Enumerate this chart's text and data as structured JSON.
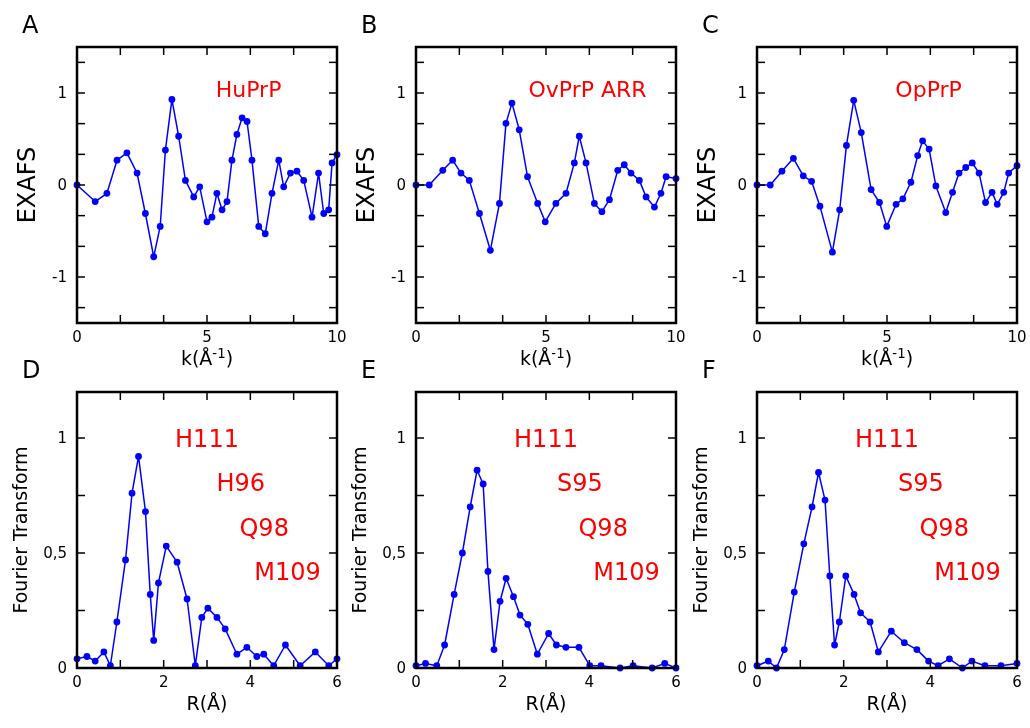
{
  "chart_data": [
    {
      "type": "line",
      "title": "A",
      "xlabel": "k(Å$^{-1}$)",
      "ylabel": "EXAFS",
      "annotations": [
        "HuPrP"
      ],
      "marker": "circle",
      "line_style": "solid",
      "xlim": [
        0,
        10
      ],
      "ylim": [
        -1.5,
        1.5
      ],
      "xticks": [
        0,
        {
          "value": 1.667,
          "label": null
        },
        {
          "value": 3.333,
          "label": null
        },
        5,
        {
          "value": 6.667,
          "label": null
        },
        {
          "value": 8.333,
          "label": null
        },
        10
      ],
      "yticks": [
        {
          "value": -1.333,
          "label": null
        },
        -1,
        {
          "value": -0.667,
          "label": null
        },
        {
          "value": -0.333,
          "label": null
        },
        0,
        {
          "value": 0.333,
          "label": null
        },
        {
          "value": 0.667,
          "label": null
        },
        1,
        {
          "value": 1.333,
          "label": null
        }
      ],
      "series": [
        {
          "color": "#0000ff",
          "x": [
            0,
            0.7,
            1.15,
            1.54,
            1.92,
            2.31,
            2.63,
            2.95,
            3.2,
            3.4,
            3.65,
            3.91,
            4.17,
            4.49,
            4.72,
            5.0,
            5.19,
            5.38,
            5.58,
            5.77,
            5.96,
            6.15,
            6.35,
            6.54,
            6.73,
            6.99,
            7.24,
            7.5,
            7.76,
            7.95,
            8.21,
            8.46,
            8.72,
            9.04,
            9.29,
            9.49,
            9.68,
            9.81,
            10
          ],
          "values": [
            0,
            -0.18,
            -0.09,
            0.27,
            0.35,
            0.13,
            -0.31,
            -0.78,
            -0.45,
            0.38,
            0.93,
            0.53,
            0.05,
            -0.13,
            -0.02,
            -0.4,
            -0.35,
            -0.09,
            -0.27,
            -0.18,
            0.27,
            0.55,
            0.73,
            0.69,
            0.27,
            -0.45,
            -0.53,
            -0.09,
            0.27,
            -0.02,
            0.13,
            0.15,
            0.05,
            -0.35,
            0.13,
            -0.31,
            -0.27,
            0.24,
            0.33
          ]
        }
      ]
    },
    {
      "type": "line",
      "title": "B",
      "xlabel": "k(Å$^{-1}$)",
      "ylabel": "EXAFS",
      "annotations": [
        "OvPrP ARR"
      ],
      "marker": "circle",
      "line_style": "solid",
      "xlim": [
        0,
        10
      ],
      "ylim": [
        -1.5,
        1.5
      ],
      "xticks": [
        0,
        {
          "value": 1.667,
          "label": null
        },
        {
          "value": 3.333,
          "label": null
        },
        5,
        {
          "value": 6.667,
          "label": null
        },
        {
          "value": 8.333,
          "label": null
        },
        10
      ],
      "yticks": [
        {
          "value": -1.333,
          "label": null
        },
        -1,
        {
          "value": -0.667,
          "label": null
        },
        {
          "value": -0.333,
          "label": null
        },
        0,
        {
          "value": 0.333,
          "label": null
        },
        {
          "value": 0.667,
          "label": null
        },
        1,
        {
          "value": 1.333,
          "label": null
        }
      ],
      "series": [
        {
          "color": "#0000ff",
          "x": [
            0,
            0.51,
            1.03,
            1.41,
            1.73,
            2.05,
            2.44,
            2.86,
            3.21,
            3.46,
            3.69,
            3.97,
            4.29,
            4.68,
            4.97,
            5.38,
            5.77,
            6.09,
            6.28,
            6.54,
            6.86,
            7.15,
            7.44,
            7.76,
            8.01,
            8.27,
            8.59,
            8.85,
            9.17,
            9.42,
            9.62,
            10
          ],
          "values": [
            0,
            0,
            0.16,
            0.27,
            0.13,
            0.05,
            -0.31,
            -0.71,
            -0.2,
            0.67,
            0.89,
            0.6,
            0.09,
            -0.2,
            -0.4,
            -0.2,
            -0.09,
            0.24,
            0.53,
            0.24,
            -0.2,
            -0.29,
            -0.16,
            0.16,
            0.22,
            0.13,
            0.05,
            -0.13,
            -0.24,
            -0.09,
            0.09,
            0.07
          ]
        }
      ]
    },
    {
      "type": "line",
      "title": "C",
      "xlabel": "k(Å$^{-1}$)",
      "ylabel": "EXAFS",
      "annotations": [
        "OpPrP"
      ],
      "marker": "circle",
      "line_style": "solid",
      "xlim": [
        0,
        10
      ],
      "ylim": [
        -1.5,
        1.5
      ],
      "xticks": [
        0,
        {
          "value": 1.667,
          "label": null
        },
        {
          "value": 3.333,
          "label": null
        },
        5,
        {
          "value": 6.667,
          "label": null
        },
        {
          "value": 8.333,
          "label": null
        },
        10
      ],
      "yticks": [
        {
          "value": -1.333,
          "label": null
        },
        -1,
        {
          "value": -0.667,
          "label": null
        },
        {
          "value": -0.333,
          "label": null
        },
        0,
        {
          "value": 0.333,
          "label": null
        },
        {
          "value": 0.667,
          "label": null
        },
        1,
        {
          "value": 1.333,
          "label": null
        }
      ],
      "series": [
        {
          "color": "#0000ff",
          "x": [
            0,
            0.51,
            0.96,
            1.4,
            1.78,
            2.1,
            2.42,
            2.9,
            3.18,
            3.44,
            3.72,
            4.01,
            4.39,
            4.71,
            4.99,
            5.35,
            5.61,
            5.92,
            6.18,
            6.37,
            6.62,
            6.88,
            7.26,
            7.52,
            7.77,
            8.03,
            8.28,
            8.54,
            8.79,
            9.04,
            9.24,
            9.49,
            9.68,
            10
          ],
          "values": [
            0,
            0,
            0.15,
            0.29,
            0.1,
            0.04,
            -0.23,
            -0.73,
            -0.27,
            0.43,
            0.92,
            0.57,
            -0.05,
            -0.19,
            -0.45,
            -0.21,
            -0.15,
            0.03,
            0.32,
            0.48,
            0.39,
            -0.01,
            -0.3,
            -0.08,
            0.13,
            0.19,
            0.24,
            0.13,
            -0.19,
            -0.08,
            -0.21,
            -0.08,
            0.13,
            0.21
          ]
        }
      ]
    },
    {
      "type": "line",
      "title": "D",
      "xlabel": "R(Å)",
      "ylabel": "Fourier Transform",
      "annotations": [
        "H111",
        "H96",
        "Q98",
        "M109"
      ],
      "marker": "circle",
      "line_style": "solid",
      "xlim": [
        0,
        6
      ],
      "ylim": [
        0,
        1.2
      ],
      "xticks": [
        0,
        {
          "value": 1,
          "label": null
        },
        2,
        {
          "value": 3,
          "label": null
        },
        4,
        {
          "value": 5,
          "label": null
        },
        6
      ],
      "yticks": [
        0,
        {
          "value": 0.25,
          "label": null
        },
        {
          "value": 0.5,
          "label": "0,5"
        },
        {
          "value": 0.75,
          "label": null
        },
        1
      ],
      "series": [
        {
          "color": "#0000ff",
          "x": [
            0,
            0.23,
            0.42,
            0.62,
            0.77,
            0.92,
            1.12,
            1.27,
            1.42,
            1.58,
            1.69,
            1.77,
            1.88,
            2.06,
            2.31,
            2.54,
            2.73,
            2.88,
            3.02,
            3.23,
            3.42,
            3.69,
            3.92,
            4.15,
            4.31,
            4.54,
            4.81,
            5.15,
            5.5,
            5.81,
            6
          ],
          "values": [
            0.04,
            0.05,
            0.03,
            0.07,
            0.01,
            0.2,
            0.47,
            0.76,
            0.92,
            0.68,
            0.32,
            0.12,
            0.37,
            0.53,
            0.46,
            0.3,
            0.01,
            0.22,
            0.26,
            0.22,
            0.17,
            0.06,
            0.09,
            0.05,
            0.06,
            0.01,
            0.1,
            0.01,
            0.07,
            0.01,
            0.04
          ]
        }
      ]
    },
    {
      "type": "line",
      "title": "E",
      "xlabel": "R(Å)",
      "ylabel": "Fourier Transform",
      "annotations": [
        "H111",
        "S95",
        "Q98",
        "M109"
      ],
      "marker": "circle",
      "line_style": "solid",
      "xlim": [
        0,
        6
      ],
      "ylim": [
        0,
        1.2
      ],
      "xticks": [
        0,
        {
          "value": 1,
          "label": null
        },
        2,
        {
          "value": 3,
          "label": null
        },
        4,
        {
          "value": 5,
          "label": null
        },
        6
      ],
      "yticks": [
        0,
        {
          "value": 0.25,
          "label": null
        },
        {
          "value": 0.5,
          "label": "0,5"
        },
        {
          "value": 0.75,
          "label": null
        },
        1
      ],
      "series": [
        {
          "color": "#0000ff",
          "x": [
            0,
            0.22,
            0.48,
            0.66,
            0.88,
            1.07,
            1.25,
            1.41,
            1.55,
            1.66,
            1.8,
            1.94,
            2.08,
            2.25,
            2.4,
            2.58,
            2.8,
            3.06,
            3.24,
            3.46,
            3.76,
            4.01,
            4.27,
            4.71,
            5.01,
            5.45,
            5.74,
            6
          ],
          "values": [
            0.01,
            0.02,
            0.01,
            0.1,
            0.32,
            0.5,
            0.7,
            0.86,
            0.8,
            0.42,
            0.08,
            0.29,
            0.39,
            0.31,
            0.23,
            0.19,
            0.06,
            0.15,
            0.1,
            0.09,
            0.09,
            0.01,
            0.01,
            0,
            0.01,
            0,
            0.02,
            0
          ]
        }
      ]
    },
    {
      "type": "line",
      "title": "F",
      "xlabel": "R(Å)",
      "ylabel": "Fourier Transform",
      "annotations": [
        "H111",
        "S95",
        "Q98",
        "M109"
      ],
      "marker": "circle",
      "line_style": "solid",
      "xlim": [
        0,
        6
      ],
      "ylim": [
        0,
        1.2
      ],
      "xticks": [
        0,
        {
          "value": 1,
          "label": null
        },
        2,
        {
          "value": 3,
          "label": null
        },
        4,
        {
          "value": 5,
          "label": null
        },
        6
      ],
      "yticks": [
        0,
        {
          "value": 0.25,
          "label": null
        },
        {
          "value": 0.5,
          "label": "0,5"
        },
        {
          "value": 0.75,
          "label": null
        },
        1
      ],
      "series": [
        {
          "color": "#0000ff",
          "x": [
            0,
            0.26,
            0.45,
            0.63,
            0.86,
            1.08,
            1.27,
            1.42,
            1.57,
            1.68,
            1.79,
            1.9,
            2.05,
            2.24,
            2.39,
            2.61,
            2.8,
            3.1,
            3.4,
            3.69,
            3.96,
            4.18,
            4.44,
            4.74,
            4.96,
            5.26,
            5.63,
            6
          ],
          "values": [
            0.01,
            0.03,
            0,
            0.08,
            0.33,
            0.54,
            0.7,
            0.85,
            0.73,
            0.4,
            0.1,
            0.2,
            0.4,
            0.32,
            0.24,
            0.2,
            0.07,
            0.16,
            0.11,
            0.08,
            0.03,
            0.01,
            0.04,
            0,
            0.03,
            0.01,
            0.01,
            0.02
          ]
        }
      ]
    }
  ]
}
